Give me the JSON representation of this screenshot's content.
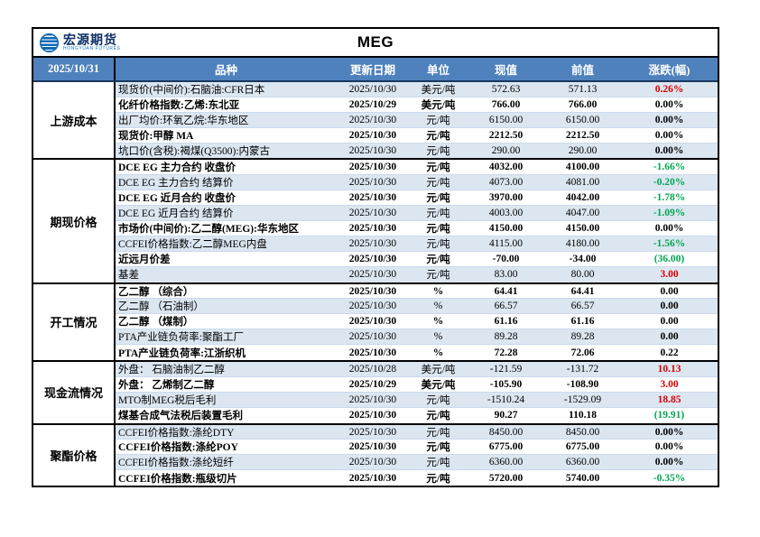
{
  "brand": {
    "name": "宏源期货",
    "name_en": "HONGYUAN FUTURES"
  },
  "title": "MEG",
  "report_date": "2025/10/31",
  "columns": {
    "variety": "品种",
    "update_date": "更新日期",
    "unit": "单位",
    "current": "现值",
    "previous": "前值",
    "change": "涨跌(幅)"
  },
  "colors": {
    "header_bg": "#4f81bd",
    "alt_row_bg": "#dce6f1",
    "up": "#d60000",
    "down": "#00a651",
    "flat": "#000000"
  },
  "groups": [
    {
      "label": "上游成本",
      "rows": [
        {
          "name": "现货价(中间价):石脑油:CFR日本",
          "date": "2025/10/30",
          "unit": "美元/吨",
          "current": "572.63",
          "previous": "571.13",
          "change": "0.26%",
          "change_color": "up",
          "emphasis": false
        },
        {
          "name": "化纤价格指数:乙烯:东北亚",
          "date": "2025/10/29",
          "unit": "美元/吨",
          "current": "766.00",
          "previous": "766.00",
          "change": "0.00%",
          "change_color": "flat",
          "emphasis": true
        },
        {
          "name": "出厂均价:环氧乙烷:华东地区",
          "date": "2025/10/30",
          "unit": "元/吨",
          "current": "6150.00",
          "previous": "6150.00",
          "change": "0.00%",
          "change_color": "flat",
          "emphasis": false
        },
        {
          "name": "现货价:甲醇 MA",
          "date": "2025/10/30",
          "unit": "元/吨",
          "current": "2212.50",
          "previous": "2212.50",
          "change": "0.00%",
          "change_color": "flat",
          "emphasis": true
        },
        {
          "name": "坑口价(含税):褐煤(Q3500):内蒙古",
          "date": "2025/10/30",
          "unit": "元/吨",
          "current": "290.00",
          "previous": "290.00",
          "change": "0.00%",
          "change_color": "flat",
          "emphasis": false
        }
      ]
    },
    {
      "label": "期现价格",
      "rows": [
        {
          "name": "DCE EG 主力合约 收盘价",
          "date": "2025/10/30",
          "unit": "元/吨",
          "current": "4032.00",
          "previous": "4100.00",
          "change": "-1.66%",
          "change_color": "down",
          "emphasis": true
        },
        {
          "name": "DCE EG 主力合约 结算价",
          "date": "2025/10/30",
          "unit": "元/吨",
          "current": "4073.00",
          "previous": "4081.00",
          "change": "-0.20%",
          "change_color": "down",
          "emphasis": false
        },
        {
          "name": "DCE EG 近月合约 收盘价",
          "date": "2025/10/30",
          "unit": "元/吨",
          "current": "3970.00",
          "previous": "4042.00",
          "change": "-1.78%",
          "change_color": "down",
          "emphasis": true
        },
        {
          "name": "DCE EG 近月合约 结算价",
          "date": "2025/10/30",
          "unit": "元/吨",
          "current": "4003.00",
          "previous": "4047.00",
          "change": "-1.09%",
          "change_color": "down",
          "emphasis": false
        },
        {
          "name": "市场价(中间价):乙二醇(MEG):华东地区",
          "date": "2025/10/30",
          "unit": "元/吨",
          "current": "4150.00",
          "previous": "4150.00",
          "change": "0.00%",
          "change_color": "flat",
          "emphasis": true
        },
        {
          "name": "CCFEI价格指数:乙二醇MEG内盘",
          "date": "2025/10/30",
          "unit": "元/吨",
          "current": "4115.00",
          "previous": "4180.00",
          "change": "-1.56%",
          "change_color": "down",
          "emphasis": false
        },
        {
          "name": "近远月价差",
          "date": "2025/10/30",
          "unit": "元/吨",
          "current": "-70.00",
          "previous": "-34.00",
          "change": "(36.00)",
          "change_color": "down",
          "emphasis": true
        },
        {
          "name": "基差",
          "date": "2025/10/30",
          "unit": "元/吨",
          "current": "83.00",
          "previous": "80.00",
          "change": "3.00",
          "change_color": "up",
          "emphasis": false
        }
      ]
    },
    {
      "label": "开工情况",
      "rows": [
        {
          "name": "乙二醇 （综合）",
          "date": "2025/10/30",
          "unit": "%",
          "current": "64.41",
          "previous": "64.41",
          "change": "0.00",
          "change_color": "flat",
          "emphasis": true
        },
        {
          "name": "乙二醇 （石油制）",
          "date": "2025/10/30",
          "unit": "%",
          "current": "66.57",
          "previous": "66.57",
          "change": "0.00",
          "change_color": "flat",
          "emphasis": false
        },
        {
          "name": "乙二醇 （煤制）",
          "date": "2025/10/30",
          "unit": "%",
          "current": "61.16",
          "previous": "61.16",
          "change": "0.00",
          "change_color": "flat",
          "emphasis": true
        },
        {
          "name": "PTA产业链负荷率:聚酯工厂",
          "date": "2025/10/30",
          "unit": "%",
          "current": "89.28",
          "previous": "89.28",
          "change": "0.00",
          "change_color": "flat",
          "emphasis": false
        },
        {
          "name": "PTA产业链负荷率:江浙织机",
          "date": "2025/10/30",
          "unit": "%",
          "current": "72.28",
          "previous": "72.06",
          "change": "0.22",
          "change_color": "flat",
          "emphasis": true
        }
      ]
    },
    {
      "label": "现金流情况",
      "rows": [
        {
          "name": "外盘： 石脑油制乙二醇",
          "date": "2025/10/28",
          "unit": "美元/吨",
          "current": "-121.59",
          "previous": "-131.72",
          "change": "10.13",
          "change_color": "up",
          "emphasis": false
        },
        {
          "name": "外盘： 乙烯制乙二醇",
          "date": "2025/10/29",
          "unit": "美元/吨",
          "current": "-105.90",
          "previous": "-108.90",
          "change": "3.00",
          "change_color": "up",
          "emphasis": true
        },
        {
          "name": "MTO制MEG税后毛利",
          "date": "2025/10/30",
          "unit": "元/吨",
          "current": "-1510.24",
          "previous": "-1529.09",
          "change": "18.85",
          "change_color": "up",
          "emphasis": false
        },
        {
          "name": "煤基合成气法税后装置毛利",
          "date": "2025/10/30",
          "unit": "元/吨",
          "current": "90.27",
          "previous": "110.18",
          "change": "(19.91)",
          "change_color": "down",
          "emphasis": true
        }
      ]
    },
    {
      "label": "聚酯价格",
      "rows": [
        {
          "name": "CCFEI价格指数:涤纶DTY",
          "date": "2025/10/30",
          "unit": "元/吨",
          "current": "8450.00",
          "previous": "8450.00",
          "change": "0.00%",
          "change_color": "flat",
          "emphasis": false
        },
        {
          "name": "CCFEI价格指数:涤纶POY",
          "date": "2025/10/30",
          "unit": "元/吨",
          "current": "6775.00",
          "previous": "6775.00",
          "change": "0.00%",
          "change_color": "flat",
          "emphasis": true
        },
        {
          "name": "CCFEI价格指数:涤纶短纤",
          "date": "2025/10/30",
          "unit": "元/吨",
          "current": "6360.00",
          "previous": "6360.00",
          "change": "0.00%",
          "change_color": "flat",
          "emphasis": false
        },
        {
          "name": "CCFEI价格指数:瓶级切片",
          "date": "2025/10/30",
          "unit": "元/吨",
          "current": "5720.00",
          "previous": "5740.00",
          "change": "-0.35%",
          "change_color": "down",
          "emphasis": true
        }
      ]
    }
  ]
}
